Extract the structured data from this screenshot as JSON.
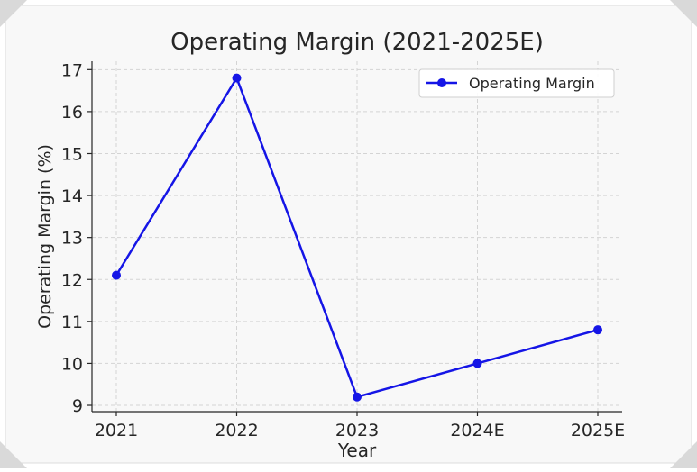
{
  "chart_data": {
    "type": "line",
    "title": "Operating Margin (2021-2025E)",
    "xlabel": "Year",
    "ylabel": "Operating Margin (%)",
    "categories": [
      "2021",
      "2022",
      "2023",
      "2024E",
      "2025E"
    ],
    "series": [
      {
        "name": "Operating Margin",
        "values": [
          12.1,
          16.8,
          9.2,
          10.0,
          10.8
        ],
        "color": "#1515e6",
        "marker": "circle"
      }
    ],
    "ylim": [
      8.85,
      17.2
    ],
    "yticks": [
      9,
      10,
      11,
      12,
      13,
      14,
      15,
      16,
      17
    ],
    "grid": true,
    "legend": "top-right"
  }
}
